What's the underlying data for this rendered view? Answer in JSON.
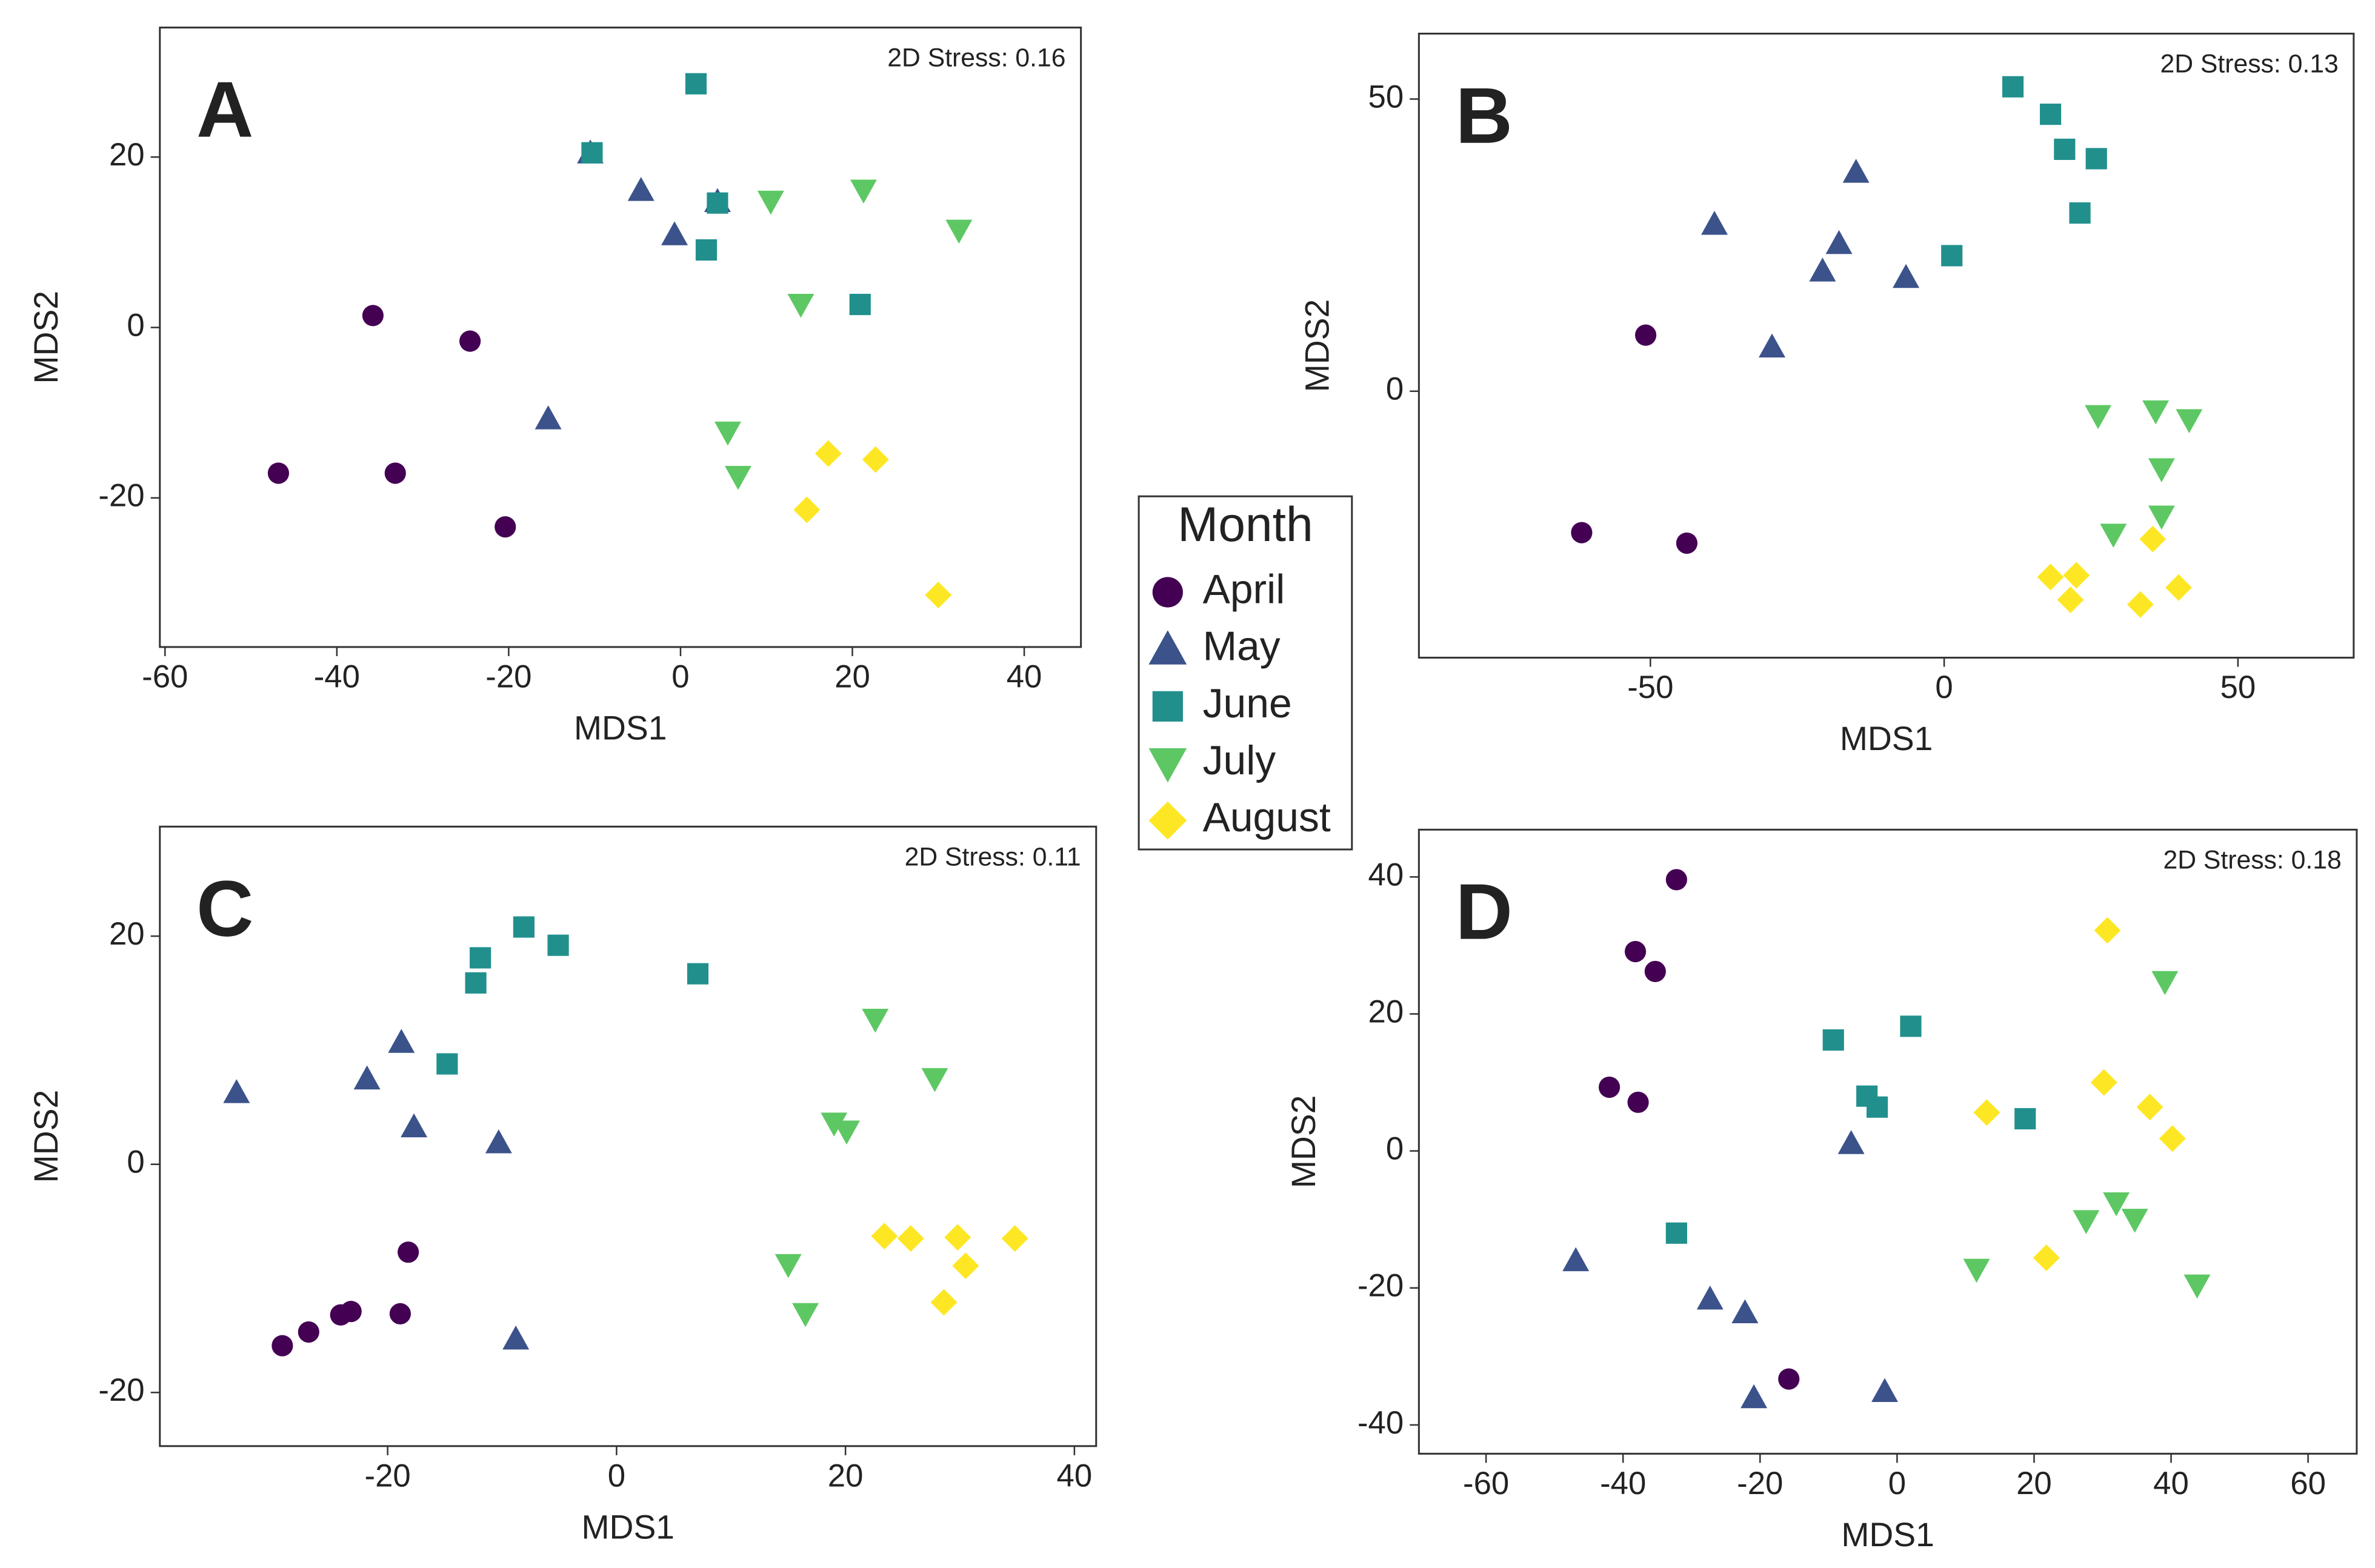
{
  "legend": {
    "title": "Month"
  },
  "chart_data": [
    {
      "type": "scatter",
      "label": "A",
      "annotation": "2D Stress: 0.16",
      "x_label": "MDS1",
      "y_label": "MDS2",
      "xlim": [
        -60.6,
        46.6
      ],
      "ylim": [
        -37.5,
        35.2
      ],
      "xticks": [
        -60,
        -40,
        -20,
        0,
        20,
        40
      ],
      "yticks": [
        -20,
        0,
        20
      ],
      "series": [
        {
          "name": "April",
          "color": "#440154",
          "marker": "circle",
          "x": [
            -35.8,
            -24.5,
            -46.8,
            -33.2,
            -20.4
          ],
          "y": [
            1.4,
            -1.6,
            -17.1,
            -17.1,
            -23.4
          ]
        },
        {
          "name": "May",
          "color": "#3b528b",
          "marker": "triangle-up",
          "x": [
            -10.5,
            -4.6,
            -0.7,
            4.3,
            -15.4
          ],
          "y": [
            20.5,
            16.1,
            10.9,
            14.8,
            -10.7
          ]
        },
        {
          "name": "June",
          "color": "#21908d",
          "marker": "square",
          "x": [
            1.8,
            -10.3,
            4.3,
            3.0,
            20.9
          ],
          "y": [
            28.6,
            20.5,
            14.6,
            9.1,
            2.7
          ]
        },
        {
          "name": "July",
          "color": "#5dc863",
          "marker": "triangle-down",
          "x": [
            10.5,
            21.3,
            32.4,
            14.0,
            5.5,
            6.7
          ],
          "y": [
            14.8,
            16.1,
            11.4,
            2.7,
            -12.3,
            -17.5
          ]
        },
        {
          "name": "August",
          "color": "#fde725",
          "marker": "diamond",
          "x": [
            17.2,
            22.7,
            14.7,
            30.0
          ],
          "y": [
            -14.8,
            -15.5,
            -21.4,
            -31.4
          ]
        }
      ]
    },
    {
      "type": "scatter",
      "label": "B",
      "annotation": "2D Stress: 0.13",
      "x_label": "MDS1",
      "y_label": "MDS2",
      "xlim": [
        -89.4,
        69.7
      ],
      "ylim": [
        -45.6,
        61.2
      ],
      "xticks": [
        -50,
        0,
        50
      ],
      "yticks": [
        0,
        50
      ],
      "series": [
        {
          "name": "April",
          "color": "#440154",
          "marker": "circle",
          "x": [
            -50.8,
            -61.7,
            -43.8
          ],
          "y": [
            9.6,
            -24.2,
            -26.0
          ]
        },
        {
          "name": "May",
          "color": "#3b528b",
          "marker": "triangle-up",
          "x": [
            -39.1,
            -15.0,
            -17.9,
            -20.7,
            -6.5,
            -29.3
          ],
          "y": [
            28.6,
            37.5,
            25.3,
            20.6,
            19.5,
            7.6
          ]
        },
        {
          "name": "June",
          "color": "#21908d",
          "marker": "square",
          "x": [
            11.7,
            18.1,
            20.5,
            25.9,
            23.1,
            1.3
          ],
          "y": [
            52.1,
            47.4,
            41.4,
            39.8,
            30.5,
            23.2
          ]
        },
        {
          "name": "July",
          "color": "#5dc863",
          "marker": "triangle-down",
          "x": [
            26.2,
            36.0,
            41.7,
            37.0,
            37.0,
            28.8
          ],
          "y": [
            -4.2,
            -3.4,
            -4.9,
            -13.3,
            -21.4,
            -24.5
          ]
        },
        {
          "name": "August",
          "color": "#fde725",
          "marker": "diamond",
          "x": [
            35.5,
            18.1,
            22.5,
            21.5,
            33.4,
            39.9
          ],
          "y": [
            -25.3,
            -31.8,
            -31.5,
            -35.7,
            -36.5,
            -33.6
          ]
        }
      ]
    },
    {
      "type": "scatter",
      "label": "C",
      "annotation": "2D Stress: 0.11",
      "x_label": "MDS1",
      "y_label": "MDS2",
      "xlim": [
        -39.9,
        41.9
      ],
      "ylim": [
        -24.7,
        29.6
      ],
      "xticks": [
        -20,
        0,
        20,
        40
      ],
      "yticks": [
        -20,
        0,
        20
      ],
      "series": [
        {
          "name": "April",
          "color": "#440154",
          "marker": "circle",
          "x": [
            -29.2,
            -26.9,
            -24.1,
            -23.2,
            -18.9,
            -18.2
          ],
          "y": [
            -15.9,
            -14.7,
            -13.2,
            -12.9,
            -13.1,
            -7.7
          ]
        },
        {
          "name": "May",
          "color": "#3b528b",
          "marker": "triangle-up",
          "x": [
            -33.2,
            -21.8,
            -18.8,
            -17.7,
            -10.3,
            -8.8
          ],
          "y": [
            6.3,
            7.5,
            10.7,
            3.3,
            1.9,
            -15.3
          ]
        },
        {
          "name": "June",
          "color": "#21908d",
          "marker": "square",
          "x": [
            -8.1,
            -5.1,
            -11.9,
            -12.3,
            -14.8,
            7.1
          ],
          "y": [
            20.8,
            19.2,
            18.1,
            15.9,
            8.8,
            16.7
          ]
        },
        {
          "name": "July",
          "color": "#5dc863",
          "marker": "triangle-down",
          "x": [
            22.6,
            27.8,
            19.0,
            20.1,
            15.0,
            16.5
          ],
          "y": [
            12.7,
            7.5,
            3.6,
            2.9,
            -8.8,
            -13.1
          ]
        },
        {
          "name": "August",
          "color": "#fde725",
          "marker": "diamond",
          "x": [
            23.4,
            25.7,
            29.8,
            34.8,
            30.5,
            28.6
          ],
          "y": [
            -6.3,
            -6.5,
            -6.4,
            -6.5,
            -8.9,
            -12.1
          ]
        }
      ]
    },
    {
      "type": "scatter",
      "label": "D",
      "annotation": "2D Stress: 0.18",
      "x_label": "MDS1",
      "y_label": "MDS2",
      "xlim": [
        -69.8,
        67.1
      ],
      "ylim": [
        -44.2,
        46.9
      ],
      "xticks": [
        -60,
        -40,
        -20,
        0,
        20,
        40,
        60
      ],
      "yticks": [
        -40,
        -20,
        0,
        20,
        40
      ],
      "series": [
        {
          "name": "April",
          "color": "#440154",
          "marker": "circle",
          "x": [
            -32.2,
            -38.2,
            -35.3,
            -42.0,
            -37.8,
            -15.8
          ],
          "y": [
            39.6,
            29.1,
            26.2,
            9.3,
            7.1,
            -33.3
          ]
        },
        {
          "name": "May",
          "color": "#3b528b",
          "marker": "triangle-up",
          "x": [
            -46.9,
            -27.3,
            -22.2,
            -20.9,
            -6.7,
            -1.8
          ],
          "y": [
            -16.0,
            -21.6,
            -23.6,
            -36.0,
            1.1,
            -35.1
          ]
        },
        {
          "name": "June",
          "color": "#21908d",
          "marker": "square",
          "x": [
            -9.3,
            2.0,
            -4.4,
            -2.9,
            18.7,
            -32.2
          ],
          "y": [
            16.2,
            18.2,
            8.0,
            6.4,
            4.7,
            -12.0
          ]
        },
        {
          "name": "July",
          "color": "#5dc863",
          "marker": "triangle-down",
          "x": [
            39.1,
            11.6,
            27.6,
            32.0,
            34.7,
            43.8
          ],
          "y": [
            24.7,
            -17.3,
            -10.2,
            -7.6,
            -10.0,
            -19.6
          ]
        },
        {
          "name": "August",
          "color": "#fde725",
          "marker": "diamond",
          "x": [
            30.7,
            30.2,
            36.9,
            40.2,
            13.1,
            21.8
          ],
          "y": [
            32.2,
            10.0,
            6.4,
            1.8,
            5.6,
            -15.6
          ]
        }
      ]
    }
  ]
}
